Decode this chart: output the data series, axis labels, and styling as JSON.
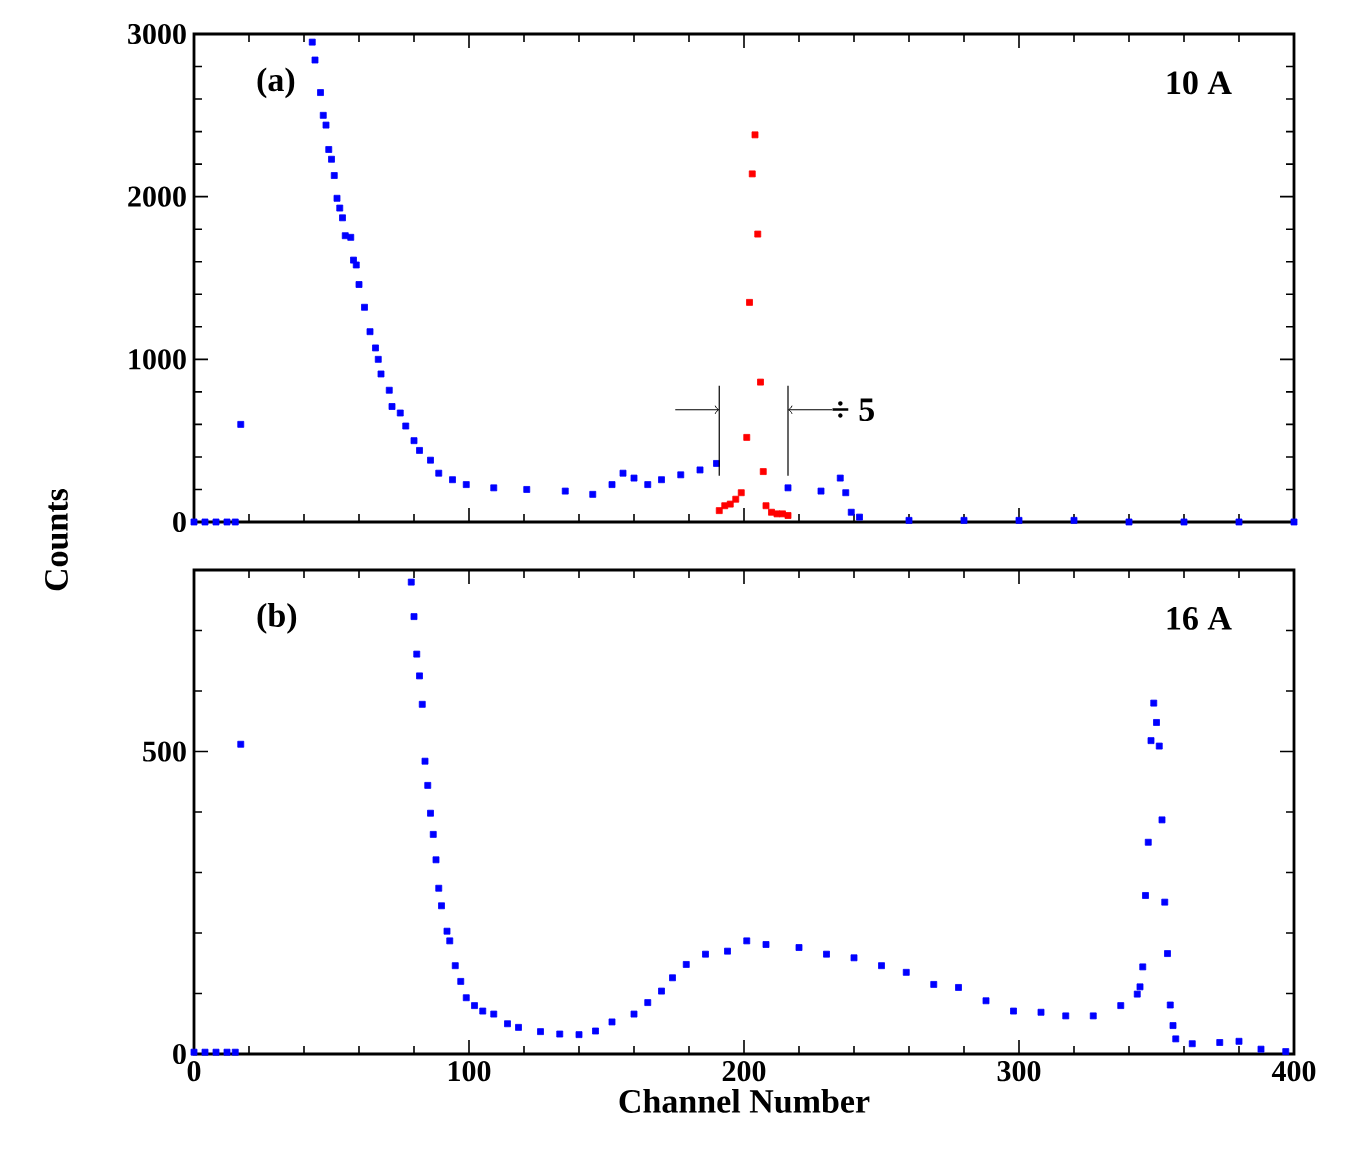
{
  "chart_data": [
    {
      "type": "scatter",
      "ylabel": "Counts",
      "marker": "square",
      "tick_labels": "y",
      "annotations": [
        "(a)",
        "10 A",
        {
          "text": "÷ 5",
          "x": 216,
          "y": 690
        }
      ],
      "xlim": [
        0,
        400
      ],
      "ylim": [
        0,
        3000
      ],
      "xticks": [
        0,
        {
          "value": 20,
          "label": null
        },
        {
          "value": 40,
          "label": null
        },
        {
          "value": 60,
          "label": null
        },
        {
          "value": 80,
          "label": null
        },
        100,
        {
          "value": 120,
          "label": null
        },
        {
          "value": 140,
          "label": null
        },
        {
          "value": 160,
          "label": null
        },
        {
          "value": 180,
          "label": null
        },
        200,
        {
          "value": 220,
          "label": null
        },
        {
          "value": 240,
          "label": null
        },
        {
          "value": 260,
          "label": null
        },
        {
          "value": 280,
          "label": null
        },
        300,
        {
          "value": 320,
          "label": null
        },
        {
          "value": 340,
          "label": null
        },
        {
          "value": 360,
          "label": null
        },
        {
          "value": 380,
          "label": null
        },
        400
      ],
      "yticks": [
        0,
        {
          "value": 200,
          "label": null
        },
        {
          "value": 400,
          "label": null
        },
        {
          "value": 600,
          "label": null
        },
        {
          "value": 800,
          "label": null
        },
        1000,
        {
          "value": 1200,
          "label": null
        },
        {
          "value": 1400,
          "label": null
        },
        {
          "value": 1600,
          "label": null
        },
        {
          "value": 1800,
          "label": null
        },
        2000,
        {
          "value": 2200,
          "label": null
        },
        {
          "value": 2400,
          "label": null
        },
        {
          "value": 2600,
          "label": null
        },
        {
          "value": 2800,
          "label": null
        },
        3000
      ],
      "series": [
        {
          "color": "#0000ff",
          "x": [
            0,
            4,
            8,
            12,
            15,
            17,
            43,
            44,
            46,
            47,
            48,
            49,
            50,
            51,
            52,
            53,
            54,
            55,
            57,
            58,
            59,
            60,
            62,
            64,
            66,
            67,
            68,
            71,
            72,
            75,
            77,
            80,
            82,
            86,
            89,
            94,
            99,
            109,
            121,
            135,
            145,
            152,
            156,
            160,
            165,
            170,
            177,
            184,
            190,
            216,
            228,
            235,
            237,
            239,
            242,
            260,
            280,
            300,
            320,
            340,
            360,
            380,
            400
          ],
          "values": [
            0,
            0,
            0,
            0,
            0,
            600,
            2950,
            2840,
            2640,
            2500,
            2440,
            2290,
            2230,
            2130,
            1990,
            1930,
            1870,
            1760,
            1750,
            1610,
            1580,
            1460,
            1320,
            1170,
            1070,
            1000,
            910,
            810,
            710,
            670,
            590,
            500,
            440,
            380,
            300,
            260,
            230,
            210,
            200,
            190,
            170,
            230,
            300,
            270,
            230,
            260,
            290,
            320,
            360,
            210,
            190,
            270,
            180,
            60,
            30,
            10,
            10,
            10,
            10,
            0,
            0,
            0,
            0
          ]
        },
        {
          "color": "#ff0000",
          "x": [
            191,
            193,
            195,
            197,
            199,
            201,
            202,
            203,
            204,
            205,
            206,
            207,
            208,
            210,
            212,
            214,
            216
          ],
          "values": [
            70,
            100,
            110,
            140,
            180,
            520,
            1350,
            2140,
            2380,
            1770,
            860,
            310,
            100,
            60,
            50,
            50,
            40
          ]
        }
      ]
    },
    {
      "type": "scatter",
      "xlabel": "Channel Number",
      "marker": "square",
      "annotations": [
        "(b)",
        "16 A"
      ],
      "xlim": [
        0,
        400
      ],
      "ylim": [
        0,
        800
      ],
      "xticks": [
        0,
        {
          "value": 20,
          "label": null
        },
        {
          "value": 40,
          "label": null
        },
        {
          "value": 60,
          "label": null
        },
        {
          "value": 80,
          "label": null
        },
        100,
        {
          "value": 120,
          "label": null
        },
        {
          "value": 140,
          "label": null
        },
        {
          "value": 160,
          "label": null
        },
        {
          "value": 180,
          "label": null
        },
        200,
        {
          "value": 220,
          "label": null
        },
        {
          "value": 240,
          "label": null
        },
        {
          "value": 260,
          "label": null
        },
        {
          "value": 280,
          "label": null
        },
        300,
        {
          "value": 320,
          "label": null
        },
        {
          "value": 340,
          "label": null
        },
        {
          "value": 360,
          "label": null
        },
        {
          "value": 380,
          "label": null
        },
        400
      ],
      "yticks": [
        0,
        {
          "value": 100,
          "label": null
        },
        {
          "value": 200,
          "label": null
        },
        {
          "value": 300,
          "label": null
        },
        {
          "value": 400,
          "label": null
        },
        500,
        {
          "value": 600,
          "label": null
        },
        {
          "value": 700,
          "label": null
        },
        {
          "value": 800,
          "label": null
        }
      ],
      "series": [
        {
          "color": "#0000ff",
          "x": [
            0,
            4,
            8,
            12,
            15,
            17,
            79,
            80,
            81,
            82,
            83,
            84,
            85,
            86,
            87,
            88,
            89,
            90,
            92,
            93,
            95,
            97,
            99,
            102,
            105,
            109,
            114,
            118,
            126,
            133,
            140,
            146,
            152,
            160,
            165,
            170,
            174,
            179,
            186,
            194,
            201,
            208,
            220,
            230,
            240,
            250,
            259,
            269,
            278,
            288,
            298,
            308,
            317,
            327,
            337,
            343,
            344,
            345,
            346,
            347,
            348,
            349,
            350,
            351,
            352,
            353,
            354,
            355,
            356,
            357,
            363,
            373,
            380,
            388,
            397
          ],
          "values": [
            3,
            3,
            3,
            3,
            3,
            512,
            780,
            723,
            661,
            625,
            578,
            484,
            444,
            398,
            363,
            321,
            274,
            245,
            203,
            187,
            146,
            120,
            93,
            80,
            71,
            66,
            50,
            44,
            37,
            33,
            32,
            38,
            53,
            66,
            85,
            104,
            126,
            148,
            165,
            170,
            187,
            181,
            176,
            165,
            159,
            146,
            135,
            115,
            110,
            88,
            71,
            69,
            63,
            63,
            80,
            99,
            111,
            144,
            262,
            350,
            518,
            580,
            548,
            509,
            387,
            251,
            166,
            81,
            47,
            25,
            17,
            19,
            21,
            8,
            4
          ]
        }
      ]
    }
  ]
}
